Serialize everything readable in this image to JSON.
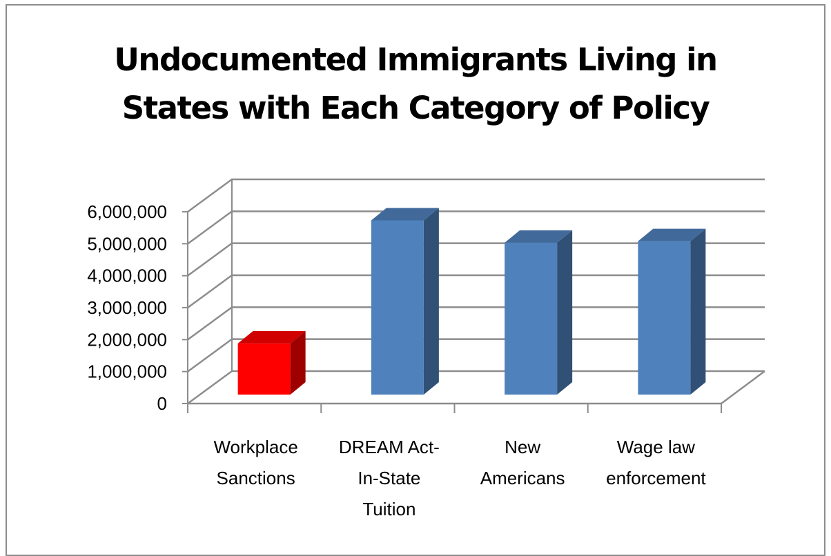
{
  "chart_data": {
    "type": "bar",
    "title": "Undocumented Immigrants Living in States with Each Category of Policy",
    "title_lines": [
      "Undocumented Immigrants Living in",
      "States with Each Category of Policy"
    ],
    "categories": [
      "Workplace Sanctions",
      "DREAM Act- In-State Tuition",
      "New Americans",
      "Wage law enforcement"
    ],
    "category_lines": [
      [
        "Workplace",
        "Sanctions"
      ],
      [
        "DREAM Act-",
        "In-State",
        "Tuition"
      ],
      [
        "New",
        "Americans"
      ],
      [
        "Wage law",
        "enforcement"
      ]
    ],
    "values": [
      1600000,
      5450000,
      4750000,
      4800000
    ],
    "bar_colors": [
      "#ff0000",
      "#4f81bd",
      "#4f81bd",
      "#4f81bd"
    ],
    "ylim": [
      0,
      6000000
    ],
    "yticks": [
      0,
      1000000,
      2000000,
      3000000,
      4000000,
      5000000,
      6000000
    ],
    "ytick_labels": [
      "0",
      "1,000,000",
      "2,000,000",
      "3,000,000",
      "4,000,000",
      "5,000,000",
      "6,000,000"
    ],
    "xlabel": "",
    "ylabel": "",
    "grid": true,
    "legend": "none",
    "style": "3d-clustered-column"
  }
}
